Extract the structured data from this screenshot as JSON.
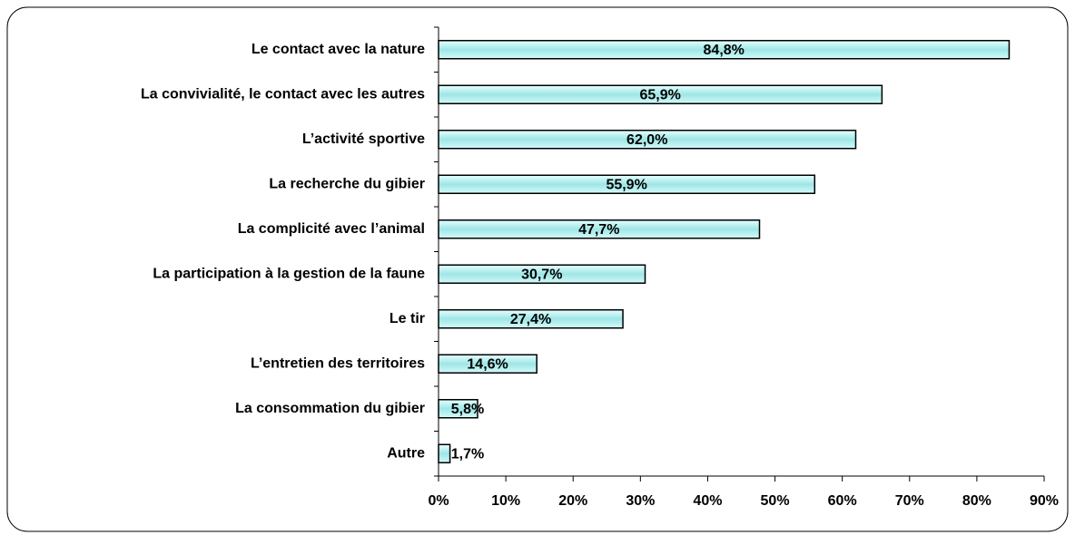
{
  "chart_data": {
    "type": "barh",
    "categories": [
      "Le contact avec la nature",
      "La convivialité, le contact avec les autres",
      "L’activité sportive",
      "La recherche du gibier",
      "La complicité avec l’animal",
      "La participation à la gestion de la faune",
      "Le tir",
      "L’entretien des territoires",
      "La consommation du gibier",
      "Autre"
    ],
    "values": [
      84.8,
      65.9,
      62.0,
      55.9,
      47.7,
      30.7,
      27.4,
      14.6,
      5.8,
      1.7
    ],
    "value_labels": [
      "84,8%",
      "65,9%",
      "62,0%",
      "55,9%",
      "47,7%",
      "30,7%",
      "27,4%",
      "14,6%",
      "5,8%",
      "1,7%"
    ],
    "color": "#b8f0f0",
    "xlim": [
      0,
      90
    ],
    "xticks": [
      {
        "value": 0,
        "label": "0%"
      },
      {
        "value": 10,
        "label": "10%"
      },
      {
        "value": 20,
        "label": "20%"
      },
      {
        "value": 30,
        "label": "30%"
      },
      {
        "value": 40,
        "label": "40%"
      },
      {
        "value": 50,
        "label": "50%"
      },
      {
        "value": 60,
        "label": "60%"
      },
      {
        "value": 70,
        "label": "70%"
      },
      {
        "value": 80,
        "label": "80%"
      },
      {
        "value": 90,
        "label": "90%"
      }
    ]
  }
}
